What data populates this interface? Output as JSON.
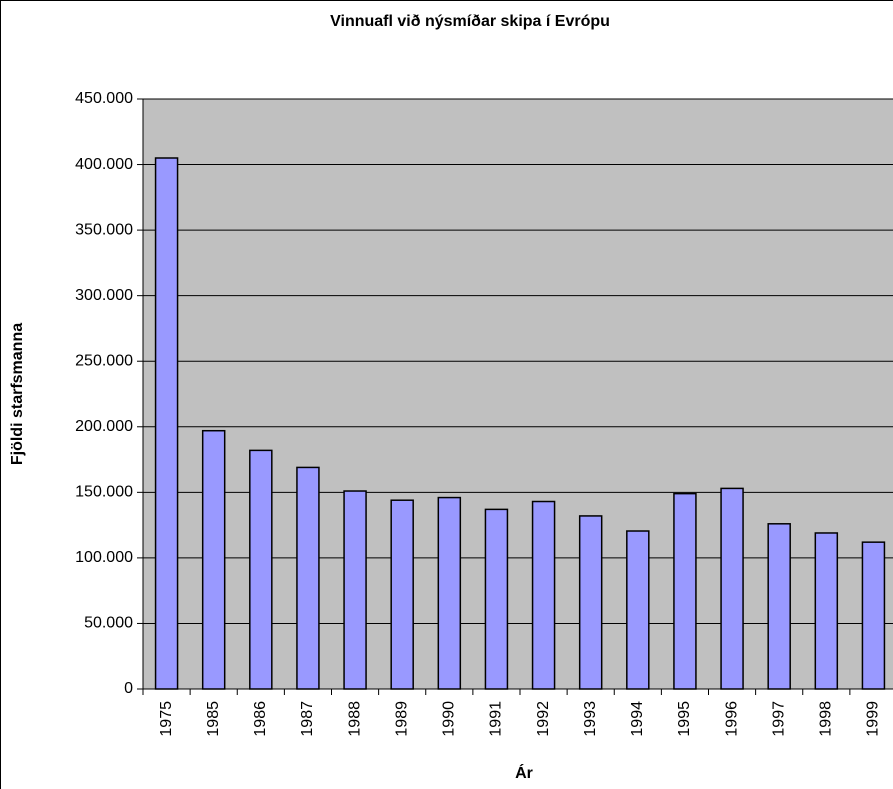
{
  "chart_data": {
    "type": "bar",
    "title": "Vinnuafl við nýsmíðar skipa í Evrópu",
    "x_label": "Ár",
    "y_label": "Fjöldi starfsmanna",
    "categories": [
      "1975",
      "1985",
      "1986",
      "1987",
      "1988",
      "1989",
      "1990",
      "1991",
      "1992",
      "1993",
      "1994",
      "1995",
      "1996",
      "1997",
      "1998",
      "1999"
    ],
    "values": [
      405000,
      197000,
      182000,
      169000,
      151000,
      144000,
      146000,
      137000,
      143000,
      132000,
      120500,
      149000,
      153000,
      126000,
      119000,
      112000
    ],
    "color": "#9999ff",
    "ylim": [
      0,
      450000
    ],
    "yticks": [
      0,
      {
        "value": 50000,
        "label": "50.000"
      },
      {
        "value": 100000,
        "label": "100.000"
      },
      {
        "value": 150000,
        "label": "150.000"
      },
      {
        "value": 200000,
        "label": "200.000"
      },
      {
        "value": 250000,
        "label": "250.000"
      },
      {
        "value": 300000,
        "label": "300.000"
      },
      {
        "value": 350000,
        "label": "350.000"
      },
      {
        "value": 400000,
        "label": "400.000"
      },
      {
        "value": 450000,
        "label": "450.000"
      }
    ],
    "grid": true
  }
}
